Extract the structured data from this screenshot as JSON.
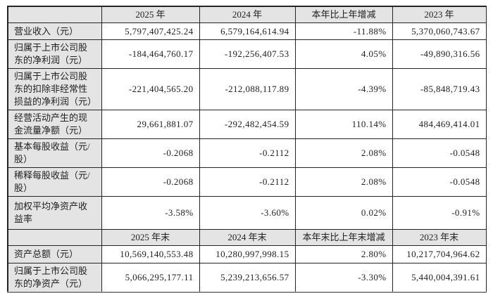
{
  "colors": {
    "header_bg": "#e4e4e4",
    "grid_border": "#242424",
    "bottom_border": "#8f8f8f",
    "text": "#1f1f1f",
    "cell_bg": "#ffffff"
  },
  "table": {
    "rows": [
      {
        "type": "header",
        "label": "",
        "values": [
          "2025 年",
          "2024 年",
          "本年比上年增减",
          "2023 年"
        ]
      },
      {
        "type": "data",
        "label": "营业收入（元）",
        "values": [
          "5,797,407,425.24",
          "6,579,164,614.94",
          "-11.88%",
          "5,370,060,743.67"
        ]
      },
      {
        "type": "data",
        "label": "归属于上市公司股东的净利润（元）",
        "values": [
          "-184,464,760.17",
          "-192,256,407.53",
          "4.05%",
          "-49,890,316.56"
        ]
      },
      {
        "type": "data",
        "label": "归属于上市公司股东的扣除非经常性损益的净利润（元）",
        "values": [
          "-221,404,565.20",
          "-212,088,117.89",
          "-4.39%",
          "-85,848,719.43"
        ]
      },
      {
        "type": "data",
        "label": "经营活动产生的现金流量净额（元）",
        "values": [
          "29,661,881.07",
          "-292,482,454.59",
          "110.14%",
          "484,469,414.01"
        ]
      },
      {
        "type": "data",
        "label": "基本每股收益（元/股）",
        "values": [
          "-0.2068",
          "-0.2112",
          "2.08%",
          "-0.0548"
        ]
      },
      {
        "type": "data",
        "label": "稀释每股收益（元/股）",
        "values": [
          "-0.2068",
          "-0.2112",
          "2.08%",
          "-0.0548"
        ]
      },
      {
        "type": "data",
        "label": "加权平均净资产收益率",
        "values": [
          "-3.58%",
          "-3.60%",
          "0.02%",
          "-0.91%"
        ]
      },
      {
        "type": "header",
        "label": "",
        "values": [
          "2025 年末",
          "2024 年末",
          "本年末比上年末增减",
          "2023 年末"
        ]
      },
      {
        "type": "data",
        "label": "资产总额（元）",
        "values": [
          "10,569,140,553.48",
          "10,280,997,998.15",
          "2.80%",
          "10,217,704,964.62"
        ]
      },
      {
        "type": "data",
        "label": "归属于上市公司股东的净资产（元）",
        "values": [
          "5,066,295,177.11",
          "5,239,213,656.57",
          "-3.30%",
          "5,440,004,391.61"
        ]
      }
    ]
  }
}
